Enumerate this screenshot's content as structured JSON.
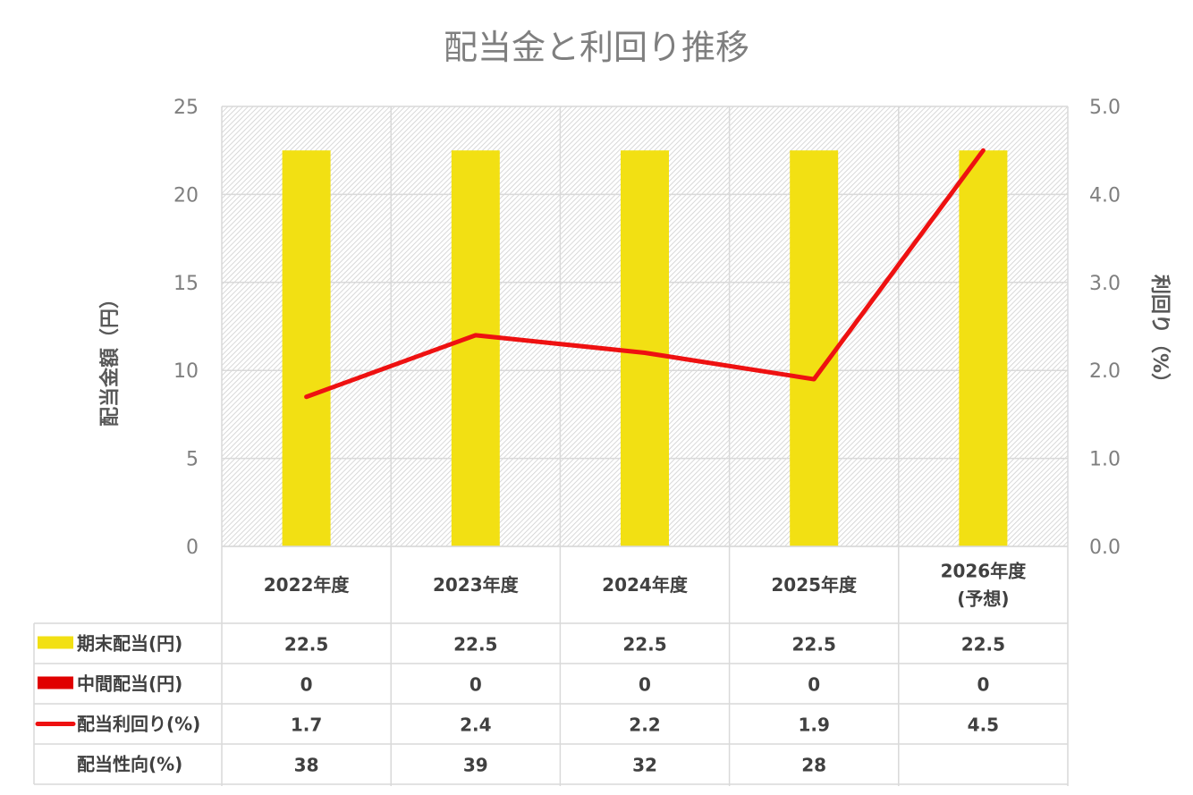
{
  "chart_data": {
    "type": "bar",
    "title": "配当金と利回り推移",
    "ylabel": "配当金額（円）",
    "y2label": "利回り（%）",
    "ylim": [
      0,
      25
    ],
    "y2lim": [
      0,
      5.0
    ],
    "y_ticks": [
      "0",
      "5",
      "10",
      "15",
      "20",
      "25"
    ],
    "y2_ticks": [
      "0.0",
      "1.0",
      "2.0",
      "3.0",
      "4.0",
      "5.0"
    ],
    "categories": [
      [
        "2022年度"
      ],
      [
        "2023年度"
      ],
      [
        "2024年度"
      ],
      [
        "2025年度"
      ],
      [
        "2026年度",
        "(予想)"
      ]
    ],
    "grid": true,
    "legend": "data-table",
    "series": [
      {
        "name": "期末配当(円)",
        "type": "bar",
        "axis": "left",
        "values": [
          22.5,
          22.5,
          22.5,
          22.5,
          22.5
        ],
        "labels": [
          "22.5",
          "22.5",
          "22.5",
          "22.5",
          "22.5"
        ]
      },
      {
        "name": "中間配当(円)",
        "type": "bar",
        "axis": "left",
        "values": [
          0,
          0,
          0,
          0,
          0
        ],
        "labels": [
          "0",
          "0",
          "0",
          "0",
          "0"
        ]
      },
      {
        "name": "配当利回り(%)",
        "type": "line",
        "axis": "right",
        "values": [
          1.7,
          2.4,
          2.2,
          1.9,
          4.5
        ],
        "labels": [
          "1.7",
          "2.4",
          "2.2",
          "1.9",
          "4.5"
        ]
      },
      {
        "name": "配当性向(%)",
        "type": "table",
        "values": [
          38,
          39,
          32,
          28,
          null
        ],
        "labels": [
          "38",
          "39",
          "32",
          "28",
          ""
        ]
      }
    ],
    "colors": {
      "final": "#f2e013",
      "interim": "#e00000",
      "yield": "#ee1111",
      "grid": "#d9d9d9",
      "text": "#404040",
      "tick": "#7f7f7f"
    }
  }
}
